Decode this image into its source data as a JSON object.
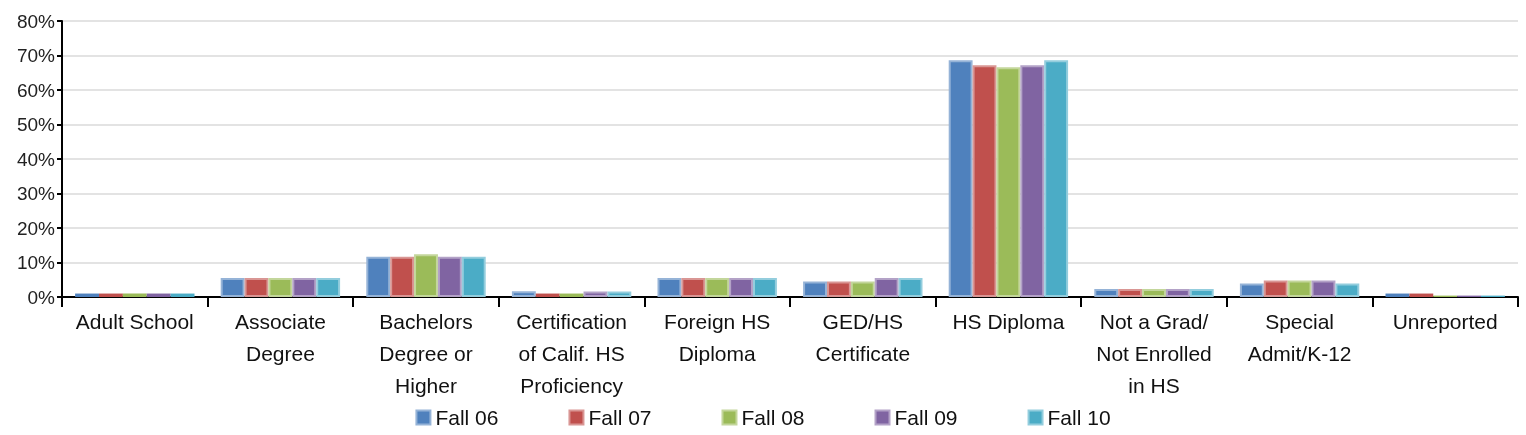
{
  "chart_data": {
    "type": "bar",
    "categories": [
      "Adult School",
      "Associate Degree",
      "Bachelors Degree or Higher",
      "Certification of Calif. HS Proficiency",
      "Foreign HS Diploma",
      "GED/HS Certificate",
      "HS Diploma",
      "Not a Grad/ Not Enrolled in HS",
      "Special Admit/K-12",
      "Unreported"
    ],
    "series": [
      {
        "name": "Fall 06",
        "color": "#4f81bd",
        "values": [
          1.0,
          5.5,
          11.7,
          1.7,
          5.5,
          4.5,
          68.6,
          2.3,
          3.9,
          1.0
        ]
      },
      {
        "name": "Fall 07",
        "color": "#c0504d",
        "values": [
          1.0,
          5.5,
          11.7,
          1.0,
          5.5,
          4.5,
          67.2,
          2.3,
          4.8,
          1.0
        ]
      },
      {
        "name": "Fall 08",
        "color": "#9bbb59",
        "values": [
          1.0,
          5.5,
          12.4,
          1.0,
          5.5,
          4.5,
          66.6,
          2.3,
          4.8,
          0.4
        ]
      },
      {
        "name": "Fall 09",
        "color": "#8064a2",
        "values": [
          1.0,
          5.5,
          11.7,
          1.6,
          5.5,
          5.5,
          67.2,
          2.3,
          4.8,
          0.4
        ]
      },
      {
        "name": "Fall 10",
        "color": "#4bacc6",
        "values": [
          1.0,
          5.5,
          11.7,
          1.6,
          5.5,
          5.5,
          68.6,
          2.3,
          3.9,
          0.4
        ]
      }
    ],
    "ylim": [
      0,
      80
    ],
    "yticks": [
      {
        "value": 0,
        "label": "0%"
      },
      {
        "value": 10,
        "label": "10%"
      },
      {
        "value": 20,
        "label": "20%"
      },
      {
        "value": 30,
        "label": "30%"
      },
      {
        "value": 40,
        "label": "40%"
      },
      {
        "value": 50,
        "label": "50%"
      },
      {
        "value": 60,
        "label": "60%"
      },
      {
        "value": 70,
        "label": "70%"
      },
      {
        "value": 80,
        "label": "80%"
      }
    ],
    "grid": "y",
    "legend": "bottom"
  }
}
